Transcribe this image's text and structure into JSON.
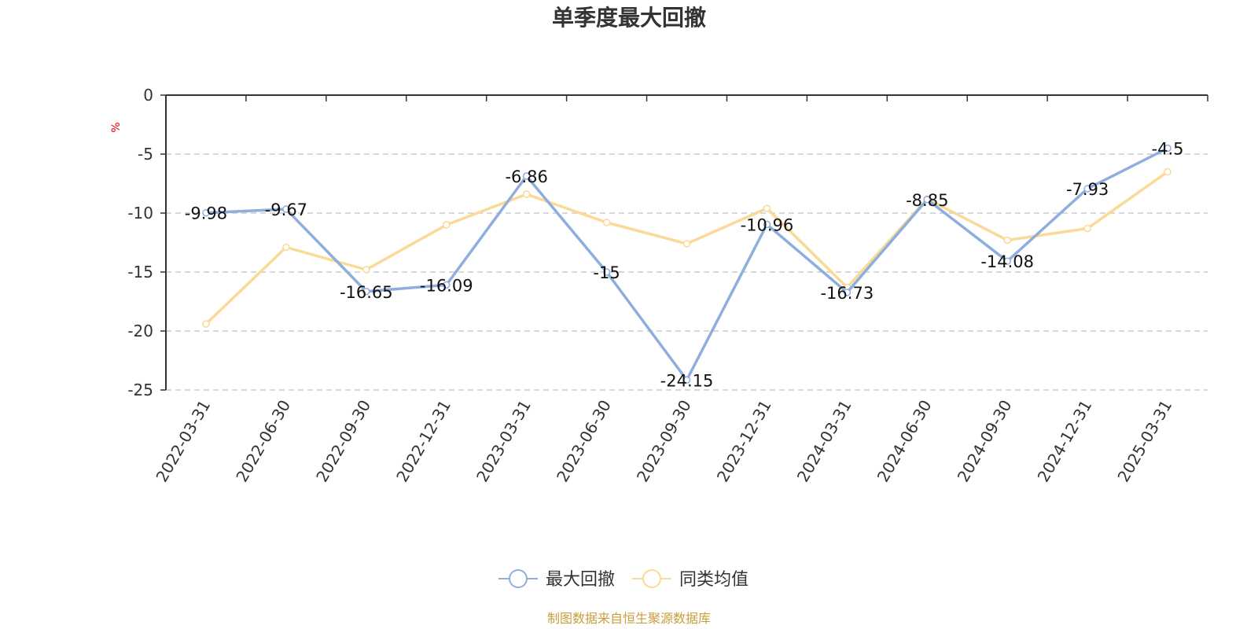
{
  "chart_data": {
    "type": "line",
    "title": "单季度最大回撤",
    "ylabel": "%",
    "ylim": [
      -25,
      0
    ],
    "yticks": [
      0,
      -5,
      -10,
      -15,
      -20,
      -25
    ],
    "grid": true,
    "legend_position": "bottom",
    "categories": [
      "2022-03-31",
      "2022-06-30",
      "2022-09-30",
      "2022-12-31",
      "2023-03-31",
      "2023-06-30",
      "2023-09-30",
      "2023-12-31",
      "2024-03-31",
      "2024-06-30",
      "2024-09-30",
      "2024-12-31",
      "2025-03-31"
    ],
    "series": [
      {
        "name": "最大回撤",
        "color": "#8eaedd",
        "values": [
          -9.98,
          -9.67,
          -16.65,
          -16.09,
          -6.86,
          -15,
          -24.15,
          -10.96,
          -16.73,
          -8.85,
          -14.08,
          -7.93,
          -4.5
        ],
        "show_labels": true
      },
      {
        "name": "同类均值",
        "color": "#fbd996",
        "values": [
          -19.4,
          -12.9,
          -14.8,
          -11.0,
          -8.4,
          -10.8,
          -12.6,
          -9.6,
          -16.3,
          -8.8,
          -12.3,
          -11.3,
          -6.5
        ],
        "show_labels": false
      }
    ]
  },
  "source_note": "制图数据来自恒生聚源数据库"
}
